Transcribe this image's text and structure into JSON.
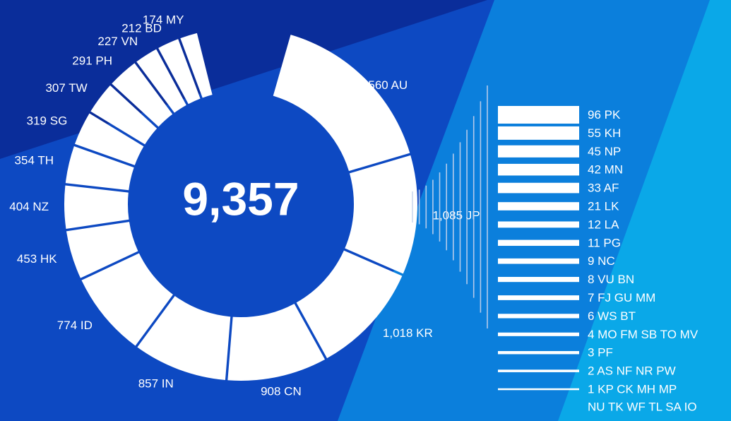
{
  "chart_data": {
    "type": "pie",
    "title": "",
    "total_label": "9,357",
    "colors": {
      "slice": "#ffffff",
      "background_dark": "#0a2d9a",
      "background_mid": "#0d49c2",
      "background_light": "#0b7fdc",
      "background_accent": "#0aa8e8",
      "connector": "#c7d3ec"
    },
    "donut": {
      "slices": [
        {
          "label": "1,560 AU",
          "code": "AU",
          "value": 1560
        },
        {
          "label": "1,085 JP",
          "code": "JP",
          "value": 1085
        },
        {
          "label": "1,018 KR",
          "code": "KR",
          "value": 1018
        },
        {
          "label": "908 CN",
          "code": "CN",
          "value": 908
        },
        {
          "label": "857 IN",
          "code": "IN",
          "value": 857
        },
        {
          "label": "774 ID",
          "code": "ID",
          "value": 774
        },
        {
          "label": "453 HK",
          "code": "HK",
          "value": 453
        },
        {
          "label": "404 NZ",
          "code": "NZ",
          "value": 404
        },
        {
          "label": "354 TH",
          "code": "TH",
          "value": 354
        },
        {
          "label": "319 SG",
          "code": "SG",
          "value": 319
        },
        {
          "label": "307 TW",
          "code": "TW",
          "value": 307
        },
        {
          "label": "291 PH",
          "code": "PH",
          "value": 291
        },
        {
          "label": "227 VN",
          "code": "VN",
          "value": 227
        },
        {
          "label": "212 BD",
          "code": "BD",
          "value": 212
        },
        {
          "label": "174 MY",
          "code": "MY",
          "value": 174
        }
      ]
    },
    "breakout": {
      "type": "bar",
      "rows": [
        {
          "label": "96 PK",
          "value": 96
        },
        {
          "label": "55 KH",
          "value": 55
        },
        {
          "label": "45 NP",
          "value": 45
        },
        {
          "label": "42 MN",
          "value": 42
        },
        {
          "label": "33 AF",
          "value": 33
        },
        {
          "label": "21 LK",
          "value": 21
        },
        {
          "label": "12 LA",
          "value": 12
        },
        {
          "label": "11 PG",
          "value": 11
        },
        {
          "label": "9 NC",
          "value": 9
        },
        {
          "label": "8 VU BN",
          "value": 8
        },
        {
          "label": "7 FJ GU MM",
          "value": 7
        },
        {
          "label": "6 WS BT",
          "value": 6
        },
        {
          "label": "4 MO FM SB TO MV",
          "value": 4
        },
        {
          "label": "3 PF",
          "value": 3
        },
        {
          "label": "2 AS NF NR PW",
          "value": 2
        },
        {
          "label": "1 KP CK MH MP",
          "label_line2": "NU TK WF TL SA IO",
          "value": 1
        }
      ]
    }
  }
}
